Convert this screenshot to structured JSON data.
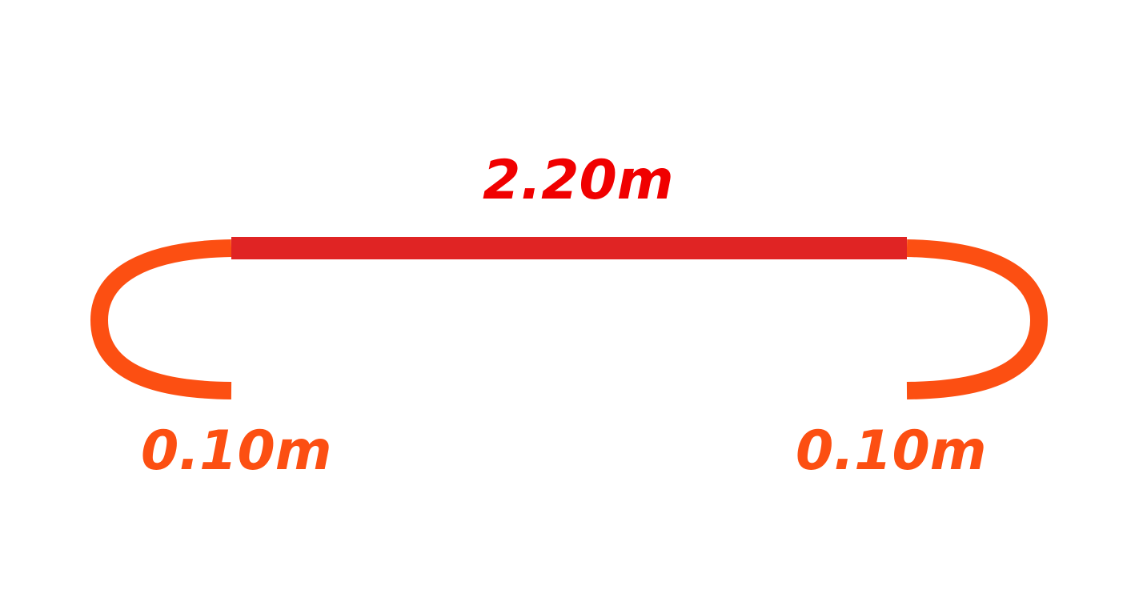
{
  "labels": {
    "main_length": "2.20m",
    "left_end_length": "0.10m",
    "right_end_length": "0.10m"
  },
  "colors": {
    "main_segment": "#e02424",
    "end_segments": "#fc4f12",
    "main_label": "#f00000",
    "end_labels": "#fc4f12",
    "background": "#ffffff"
  }
}
